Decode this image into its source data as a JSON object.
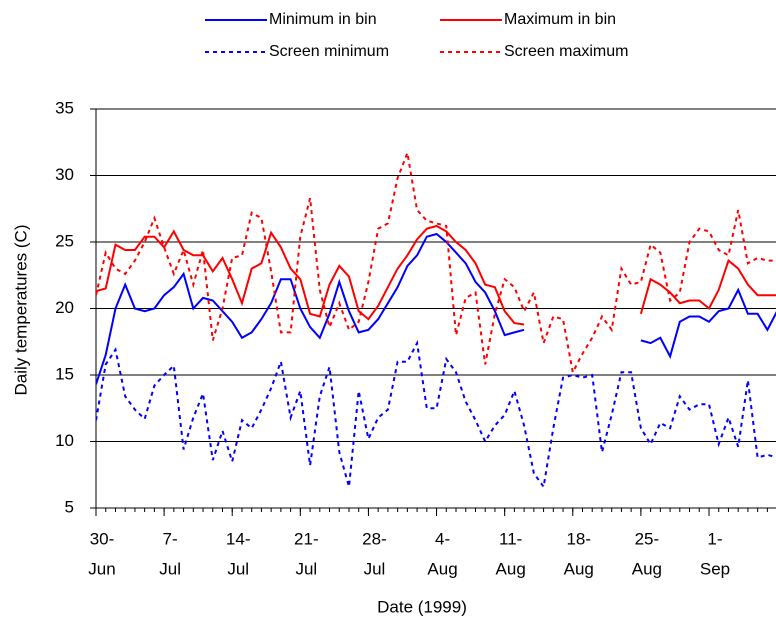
{
  "chart_data": {
    "type": "line",
    "x_label": "Date (1999)",
    "y_label": "Daily temperatures (C)",
    "x": [
      "1999-06-30",
      "1999-07-01",
      "1999-07-02",
      "1999-07-03",
      "1999-07-04",
      "1999-07-05",
      "1999-07-06",
      "1999-07-07",
      "1999-07-08",
      "1999-07-09",
      "1999-07-10",
      "1999-07-11",
      "1999-07-12",
      "1999-07-13",
      "1999-07-14",
      "1999-07-15",
      "1999-07-16",
      "1999-07-17",
      "1999-07-18",
      "1999-07-19",
      "1999-07-20",
      "1999-07-21",
      "1999-07-22",
      "1999-07-23",
      "1999-07-24",
      "1999-07-25",
      "1999-07-26",
      "1999-07-27",
      "1999-07-28",
      "1999-07-29",
      "1999-07-30",
      "1999-07-31",
      "1999-08-01",
      "1999-08-02",
      "1999-08-03",
      "1999-08-04",
      "1999-08-05",
      "1999-08-06",
      "1999-08-07",
      "1999-08-08",
      "1999-08-09",
      "1999-08-10",
      "1999-08-11",
      "1999-08-12",
      "1999-08-13",
      "1999-08-14",
      "1999-08-15",
      "1999-08-16",
      "1999-08-17",
      "1999-08-18",
      "1999-08-19",
      "1999-08-20",
      "1999-08-21",
      "1999-08-22",
      "1999-08-23",
      "1999-08-24",
      "1999-08-25",
      "1999-08-26",
      "1999-08-27",
      "1999-08-28",
      "1999-08-29",
      "1999-08-30",
      "1999-08-31",
      "1999-09-01",
      "1999-09-02",
      "1999-09-03",
      "1999-09-04",
      "1999-09-05",
      "1999-09-06",
      "1999-09-07",
      "1999-09-08"
    ],
    "xlim": [
      "1999-06-30",
      "1999-09-08"
    ],
    "xticks": [
      {
        "value": "1999-06-30",
        "label": [
          "30-",
          "Jun"
        ]
      },
      {
        "value": "1999-07-07",
        "label": [
          "7-",
          "Jul"
        ]
      },
      {
        "value": "1999-07-14",
        "label": [
          "14-",
          "Jul"
        ]
      },
      {
        "value": "1999-07-21",
        "label": [
          "21-",
          "Jul"
        ]
      },
      {
        "value": "1999-07-28",
        "label": [
          "28-",
          "Jul"
        ]
      },
      {
        "value": "1999-08-04",
        "label": [
          "4-",
          "Aug"
        ]
      },
      {
        "value": "1999-08-11",
        "label": [
          "11-",
          "Aug"
        ]
      },
      {
        "value": "1999-08-18",
        "label": [
          "18-",
          "Aug"
        ]
      },
      {
        "value": "1999-08-25",
        "label": [
          "25-",
          "Aug"
        ]
      },
      {
        "value": "1999-09-01",
        "label": [
          "1-",
          "Sep"
        ]
      }
    ],
    "ylim": [
      5,
      35
    ],
    "yticks": [
      5,
      10,
      15,
      20,
      25,
      30,
      35
    ],
    "grid": true,
    "legend": "top",
    "series": [
      {
        "name": "Minimum in bin",
        "color": "#0000ff",
        "dashed": false,
        "values": [
          14.3,
          16.5,
          20,
          21.8,
          20,
          19.8,
          20,
          21,
          21.6,
          22.6,
          20,
          20.8,
          20.6,
          19.8,
          19,
          17.8,
          18.2,
          19.2,
          20.4,
          22.2,
          22.2,
          20,
          18.6,
          17.8,
          19.6,
          22,
          19.8,
          18.2,
          18.4,
          19.2,
          20.4,
          21.6,
          23.2,
          24,
          25.4,
          25.6,
          25,
          24.2,
          23.4,
          22,
          21.2,
          19.8,
          18,
          18.2,
          18.4,
          null,
          null,
          null,
          null,
          null,
          null,
          null,
          null,
          null,
          null,
          null,
          17.6,
          17.4,
          17.8,
          16.4,
          19,
          19.4,
          19.4,
          19,
          19.8,
          20,
          21.4,
          19.6,
          19.6,
          18.4,
          19.8
        ]
      },
      {
        "name": "Maximum in bin",
        "color": "#ff0000",
        "dashed": false,
        "values": [
          21.3,
          21.5,
          24.8,
          24.4,
          24.4,
          25.4,
          25.4,
          24.6,
          25.8,
          24.4,
          24,
          24,
          22.8,
          23.8,
          22.2,
          20.4,
          23,
          23.4,
          25.7,
          24.6,
          23,
          22.2,
          19.6,
          19.4,
          21.8,
          23.2,
          22.4,
          19.8,
          19.2,
          20.2,
          21.6,
          23,
          24,
          25.2,
          26,
          26.2,
          25.8,
          25,
          24.4,
          23.4,
          21.8,
          21.6,
          19.8,
          18.9,
          18.8,
          null,
          null,
          null,
          null,
          null,
          null,
          null,
          null,
          null,
          null,
          null,
          19.6,
          22.2,
          21.8,
          21.2,
          20.4,
          20.6,
          20.6,
          20,
          21.4,
          23.6,
          23,
          21.8,
          21,
          21,
          21
        ]
      },
      {
        "name": "Screen minimum",
        "color": "#0000ff",
        "dashed": true,
        "values": [
          11.6,
          15.8,
          16.9,
          13.4,
          12.4,
          11.7,
          14.2,
          15,
          15.7,
          9.4,
          11.8,
          13.6,
          8.6,
          10.8,
          8.5,
          11.6,
          11,
          12.4,
          14,
          16,
          11.8,
          13.8,
          8.2,
          13.4,
          15.6,
          9.2,
          6.6,
          13.8,
          10.2,
          11.8,
          12.4,
          16,
          16,
          17.4,
          12.5,
          12.5,
          16.2,
          15.2,
          13,
          11.6,
          10,
          11.2,
          12,
          13.8,
          11.2,
          7.6,
          6.6,
          11,
          14.8,
          15,
          14.8,
          15,
          9.2,
          12,
          15.2,
          15.2,
          11,
          9.8,
          11.4,
          11,
          13.4,
          12.4,
          12.8,
          12.8,
          9.8,
          11.8,
          9.6,
          14.6,
          8.8,
          9,
          8.8
        ]
      },
      {
        "name": "Screen maximum",
        "color": "#ff0000",
        "dashed": true,
        "values": [
          21,
          24.2,
          23,
          22.6,
          23.6,
          25,
          26.8,
          24.6,
          22.6,
          24.4,
          21.8,
          24.4,
          17.6,
          20,
          23.8,
          24,
          27.2,
          26.8,
          22.8,
          18.2,
          18.2,
          25.4,
          28.3,
          21.4,
          18.6,
          20.4,
          18.4,
          19,
          22,
          26,
          26.4,
          29.8,
          31.7,
          27.4,
          26.6,
          26.4,
          26.2,
          18,
          20.8,
          21.2,
          15.8,
          19.6,
          22.2,
          21.6,
          19.8,
          21.2,
          17.4,
          19.4,
          19.2,
          15.2,
          16.6,
          17.8,
          19.4,
          18.4,
          23,
          21.8,
          22,
          24.8,
          24.2,
          20.6,
          21.2,
          25,
          26,
          25.8,
          24.4,
          24,
          27.4,
          23.4,
          23.8,
          23.6,
          23.6
        ]
      }
    ]
  }
}
